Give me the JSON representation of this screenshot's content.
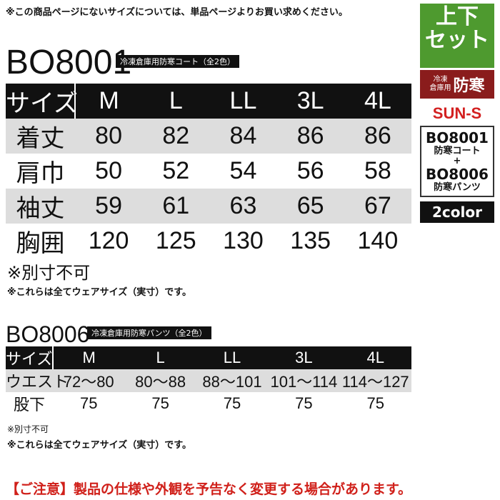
{
  "notice": "※この商品ページにないサイズについては、単品ページよりお買い求めください。",
  "side": {
    "set": [
      "上下",
      "セット"
    ],
    "use_small": [
      "冷凍",
      "倉庫用"
    ],
    "use_main": "防寒",
    "brand": "SUN-S",
    "items": [
      {
        "code": "BO8001",
        "name": "防寒コート"
      },
      {
        "code": "BO8006",
        "name": "防寒パンツ"
      }
    ],
    "plus": "+",
    "colors": "2color"
  },
  "products": [
    {
      "code": "BO8001",
      "label": "冷凍倉庫用防寒コート（全2色）",
      "table": {
        "header": [
          "サイズ",
          "M",
          "L",
          "LL",
          "3L",
          "4L"
        ],
        "rows": [
          [
            "着丈",
            80,
            82,
            84,
            86,
            86
          ],
          [
            "肩巾",
            50,
            52,
            54,
            56,
            58
          ],
          [
            "袖丈",
            59,
            61,
            63,
            65,
            67
          ],
          [
            "胸囲",
            120,
            125,
            130,
            135,
            140
          ]
        ]
      },
      "notes": [
        "※別寸不可",
        "※これらは全てウェアサイズ（実寸）です。"
      ]
    },
    {
      "code": "BO8006",
      "label": "冷凍倉庫用防寒パンツ（全2色）",
      "table": {
        "header": [
          "サイズ",
          "M",
          "L",
          "LL",
          "3L",
          "4L"
        ],
        "rows": [
          [
            "ウエスト",
            "72〜80",
            "80〜88",
            "88〜101",
            "101〜114",
            "114〜127"
          ],
          [
            "股下",
            75,
            75,
            75,
            75,
            75
          ]
        ]
      },
      "notes": [
        "※別寸不可",
        "※これらは全てウェアサイズ（実寸）です。"
      ]
    }
  ],
  "caution": "【ご注意】製品の仕様や外観を予告なく変更する場合があります。"
}
